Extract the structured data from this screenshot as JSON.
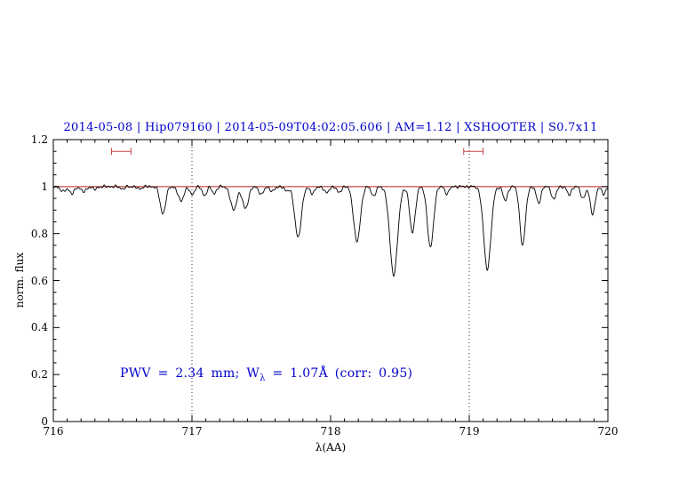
{
  "header": {
    "title": "2014-05-08 | Hip079160 | 2014-05-09T04:02:05.606 | AM=1.12 | XSHOOTER | S0.7x11"
  },
  "annotation": {
    "part1": "PWV = 2.34 mm; W",
    "sub": "λ",
    "part2": " = 1.07Å (corr: 0.95)"
  },
  "chart_data": {
    "type": "line",
    "title": "2014-05-08 | Hip079160 | 2014-05-09T04:02:05.606 | AM=1.12 | XSHOOTER | S0.7x11",
    "xlabel": "λ(AA)",
    "ylabel": "norm. flux",
    "xlim": [
      716,
      720
    ],
    "ylim": [
      0,
      1.2
    ],
    "xticks": [
      716,
      717,
      718,
      719,
      720
    ],
    "xtick_labels": [
      "716",
      "717",
      "718",
      "719",
      "720"
    ],
    "yticks": [
      0,
      0.2,
      0.4,
      0.6,
      0.8,
      1,
      1.2
    ],
    "ytick_labels": [
      "0",
      "0.2",
      "0.4",
      "0.6",
      "0.8",
      "1",
      "1.2"
    ],
    "x_minor_step": 0.1,
    "y_minor_step": 0.05,
    "grid": "off",
    "legend": "none",
    "dotted_vlines": [
      717,
      719
    ],
    "continuum": {
      "y": 1.0,
      "color": "#bb2222"
    },
    "colors": {
      "title": "#0000cc",
      "annotation": "#0000cc",
      "spectrum": "#000000",
      "marker": "#cc4444",
      "axis": "#000000"
    },
    "range_markers": [
      {
        "x1": 716.42,
        "x2": 716.56,
        "y": 1.15
      },
      {
        "x1": 718.96,
        "x2": 719.1,
        "y": 1.15
      }
    ],
    "series": [
      {
        "name": "normalized telluric spectrum",
        "model": "continuum 1.0 minus gaussian absorption lines",
        "x_step": 0.004
      }
    ],
    "absorption_lines": [
      [
        716.07,
        0.022,
        0.018
      ],
      [
        716.135,
        0.03,
        0.018
      ],
      [
        716.22,
        0.022,
        0.018
      ],
      [
        716.3,
        0.012,
        0.015
      ],
      [
        716.5,
        0.01,
        0.015
      ],
      [
        716.62,
        0.01,
        0.015
      ],
      [
        716.79,
        0.115,
        0.02
      ],
      [
        716.92,
        0.062,
        0.02
      ],
      [
        717.0,
        0.035,
        0.016
      ],
      [
        717.09,
        0.038,
        0.016
      ],
      [
        717.16,
        0.03,
        0.015
      ],
      [
        717.3,
        0.1,
        0.022
      ],
      [
        717.385,
        0.092,
        0.022
      ],
      [
        717.5,
        0.035,
        0.016
      ],
      [
        717.58,
        0.022,
        0.015
      ],
      [
        717.68,
        0.018,
        0.015
      ],
      [
        717.765,
        0.215,
        0.024
      ],
      [
        717.87,
        0.03,
        0.016
      ],
      [
        717.97,
        0.028,
        0.016
      ],
      [
        718.06,
        0.025,
        0.016
      ],
      [
        718.19,
        0.235,
        0.024
      ],
      [
        718.31,
        0.04,
        0.016
      ],
      [
        718.455,
        0.375,
        0.028
      ],
      [
        718.59,
        0.195,
        0.02
      ],
      [
        718.72,
        0.26,
        0.022
      ],
      [
        718.84,
        0.03,
        0.015
      ],
      [
        719.13,
        0.35,
        0.026
      ],
      [
        719.26,
        0.06,
        0.016
      ],
      [
        719.385,
        0.25,
        0.02
      ],
      [
        719.5,
        0.07,
        0.016
      ],
      [
        719.61,
        0.055,
        0.016
      ],
      [
        719.72,
        0.035,
        0.015
      ],
      [
        719.82,
        0.05,
        0.016
      ],
      [
        719.89,
        0.115,
        0.018
      ],
      [
        719.97,
        0.03,
        0.015
      ]
    ],
    "noise": [
      [
        0.0035,
        233,
        0.7
      ],
      [
        0.0025,
        149,
        1.9
      ],
      [
        0.0018,
        83,
        0.3
      ]
    ]
  }
}
